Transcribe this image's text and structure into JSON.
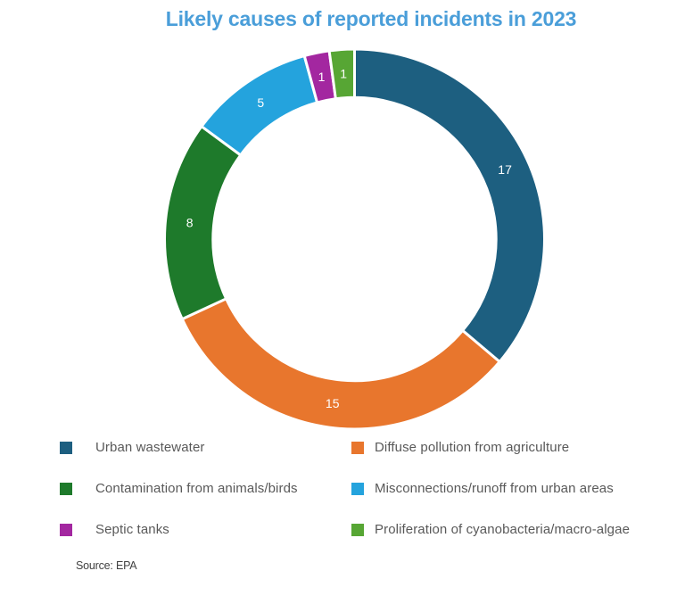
{
  "title": "Likely causes of reported incidents in 2023",
  "source": "Source: EPA",
  "colors": {
    "title": "#4a9ed9",
    "legend_text": "#595959",
    "slice_label": "#ffffff",
    "slice_gap": "#ffffff"
  },
  "chart_data": {
    "type": "pie",
    "subtype": "donut",
    "title": "Likely causes of reported incidents in 2023",
    "categories": [
      "Urban wastewater",
      "Diffuse pollution from agriculture",
      "Contamination from animals/birds",
      "Misconnections/runoff from urban areas",
      "Septic tanks",
      "Proliferation of cyanobacteria/macro-algae"
    ],
    "values": [
      17,
      15,
      8,
      5,
      1,
      1
    ],
    "colors": [
      "#1d5f80",
      "#e8762d",
      "#1e7a2b",
      "#24a3dd",
      "#a327a0",
      "#57a634"
    ],
    "total": 47,
    "start_angle_deg": 0,
    "direction": "clockwise",
    "inner_radius_ratio": 0.745,
    "data_labels": "values",
    "legend_position": "bottom",
    "legend_columns": 2,
    "legend_order": [
      [
        0,
        2,
        4
      ],
      [
        1,
        3,
        5
      ]
    ],
    "source": "Source: EPA"
  }
}
